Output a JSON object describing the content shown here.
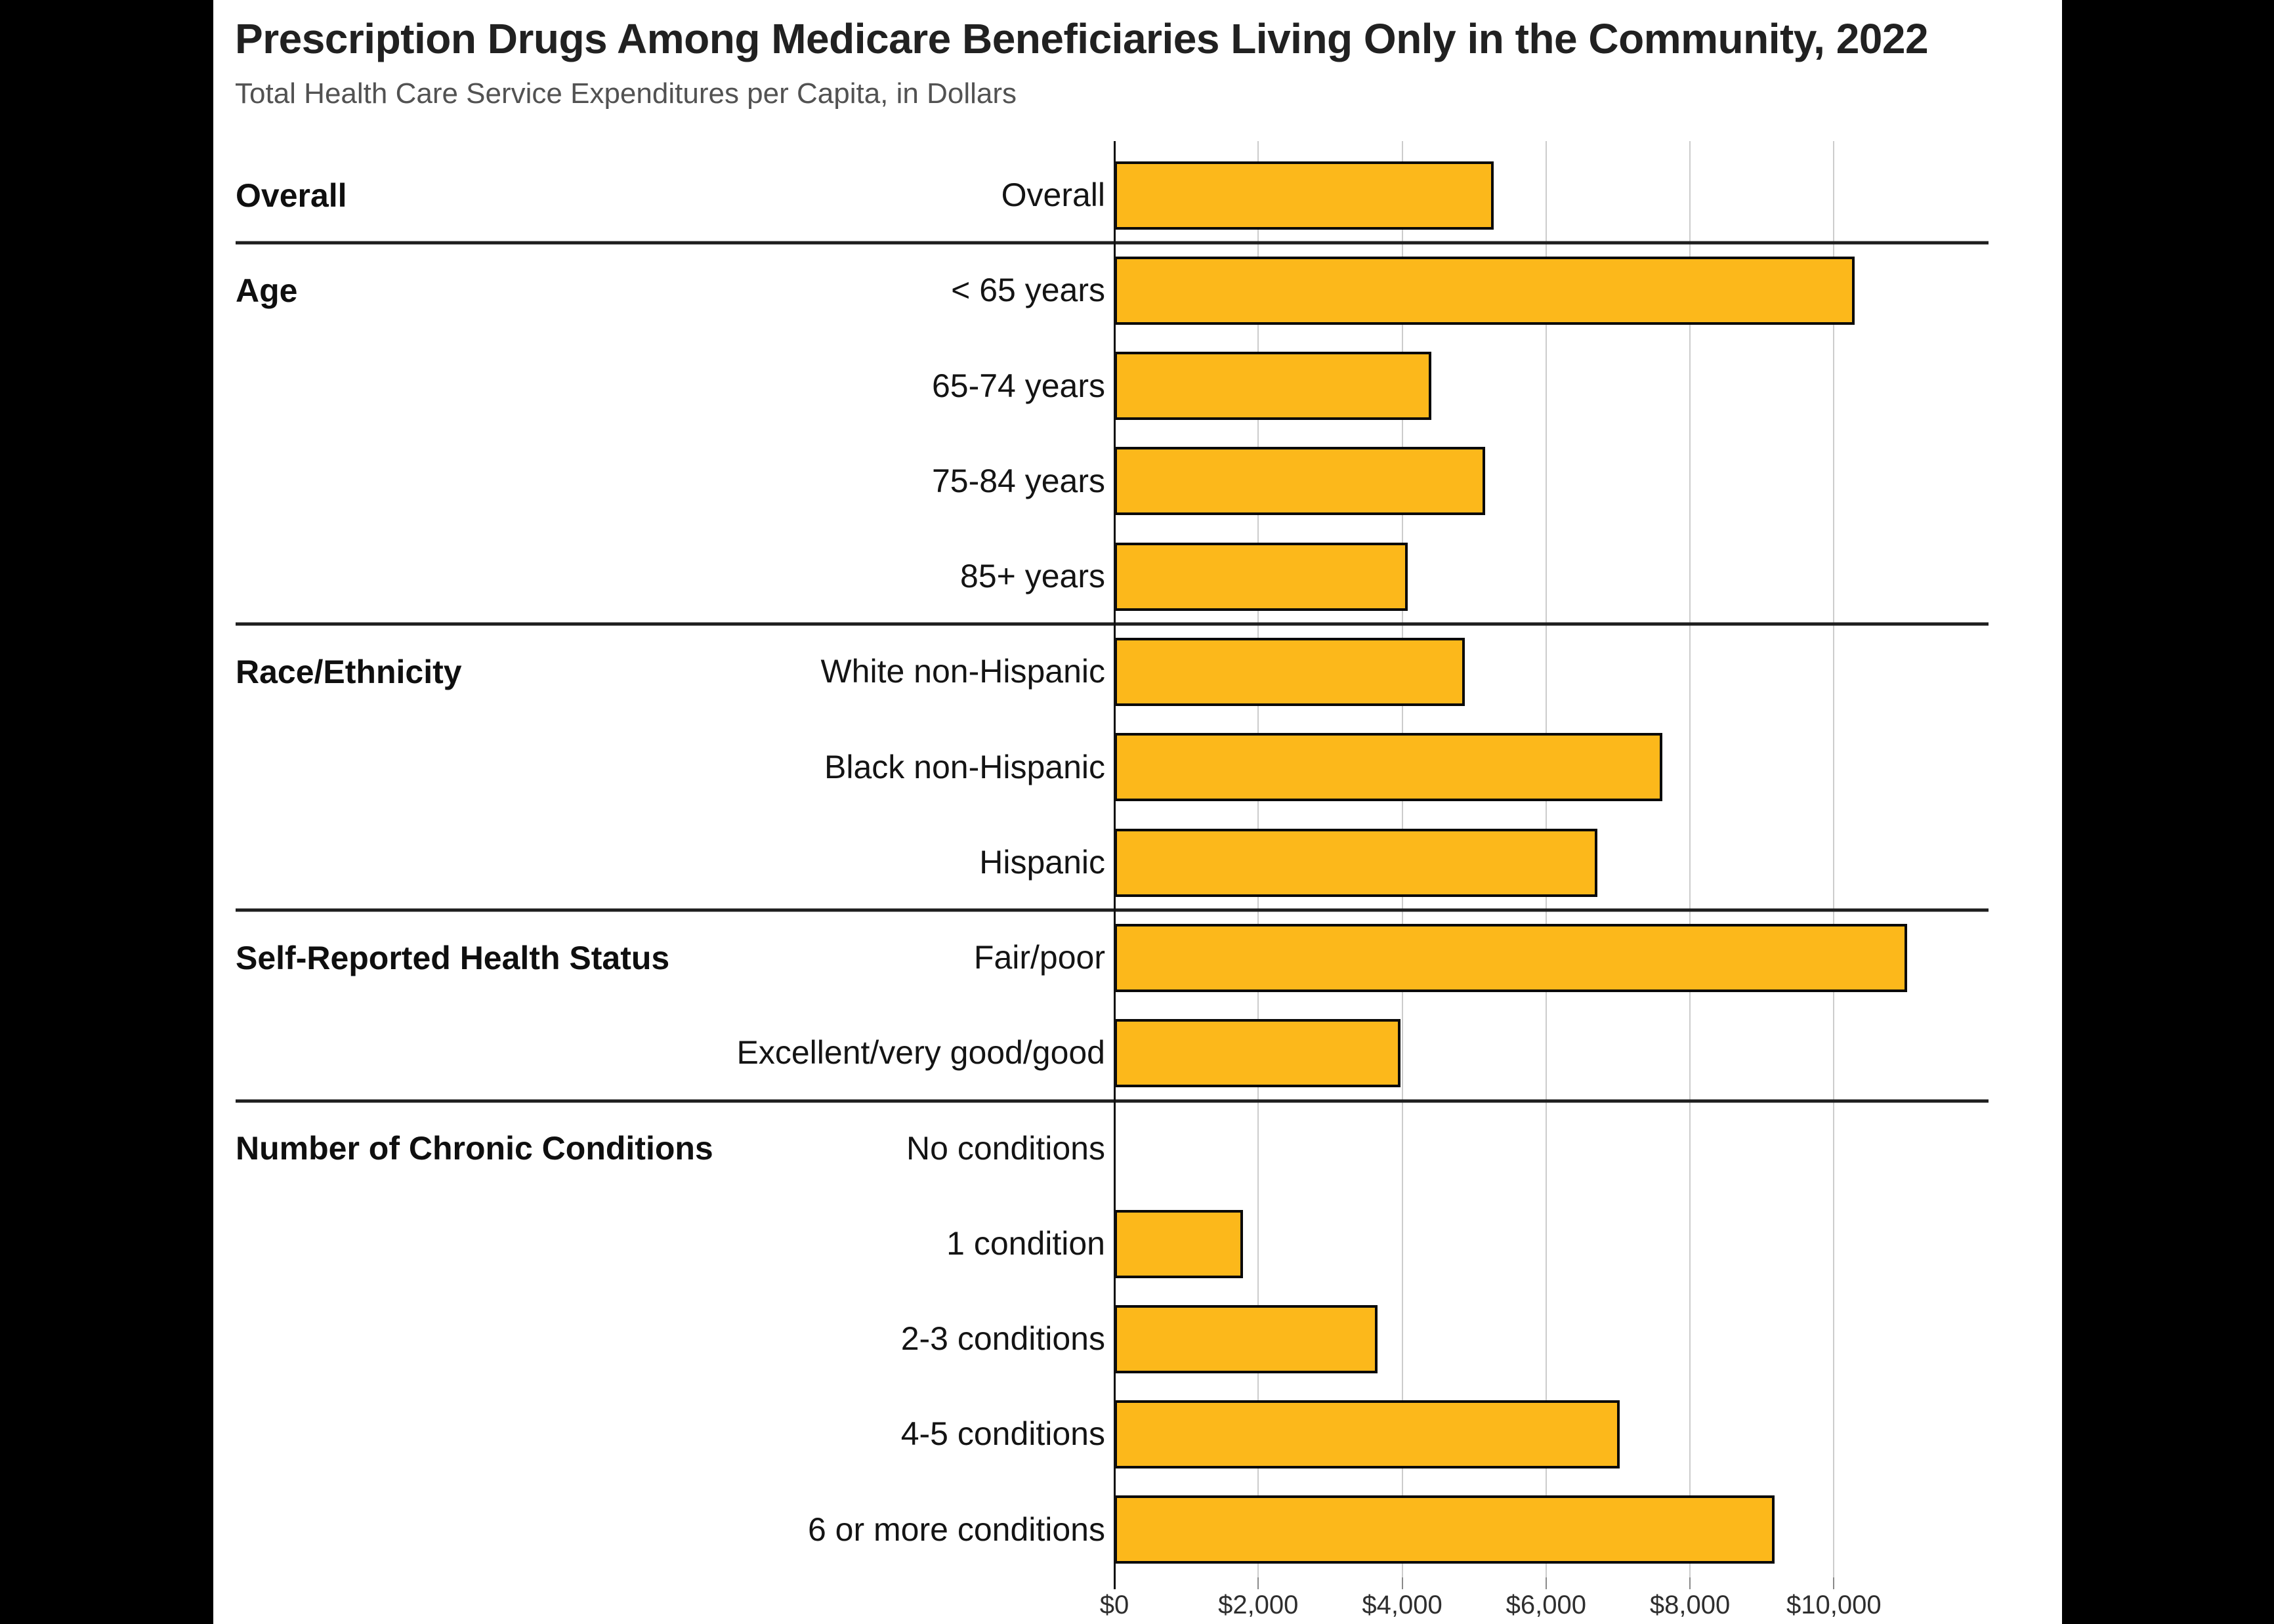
{
  "page": {
    "background_color": "#000000",
    "card_background_color": "#ffffff"
  },
  "header": {
    "title": "Prescription Drugs Among Medicare Beneficiaries Living Only in the Community, 2022",
    "subtitle": "Total Health Care Service Expenditures per Capita, in Dollars"
  },
  "chart_data": {
    "type": "bar",
    "orientation": "horizontal",
    "title": "Prescription Drugs Among Medicare Beneficiaries Living Only in the Community, 2022",
    "subtitle": "Total Health Care Service Expenditures per Capita, in Dollars",
    "xlabel": "",
    "ylabel": "",
    "unit": "dollars per capita",
    "xlim": [
      0,
      12150
    ],
    "grid": "vertical",
    "tick_values": [
      0,
      2000,
      4000,
      6000,
      8000,
      10000
    ],
    "tick_labels": [
      "$0",
      "$2,000",
      "$4,000",
      "$6,000",
      "$8,000",
      "$10,000"
    ],
    "bar_color": "#FCB81B",
    "bar_border_color": "#0A0A0A",
    "gridline_color": "#CCCCCC",
    "divider_color": "#1E1E1E",
    "sections": [
      {
        "label": "Overall",
        "rows": [
          {
            "label": "Overall",
            "value": 5270
          }
        ]
      },
      {
        "label": "Age",
        "rows": [
          {
            "label": "< 65 years",
            "value": 10290
          },
          {
            "label": "65-74 years",
            "value": 4410
          },
          {
            "label": "75-84 years",
            "value": 5150
          },
          {
            "label": "85+ years",
            "value": 4080
          }
        ]
      },
      {
        "label": "Race/Ethnicity",
        "rows": [
          {
            "label": "White non-Hispanic",
            "value": 4870
          },
          {
            "label": "Black non-Hispanic",
            "value": 7620
          },
          {
            "label": "Hispanic",
            "value": 6710
          }
        ]
      },
      {
        "label": "Self-Reported Health Status",
        "rows": [
          {
            "label": "Fair/poor",
            "value": 11020
          },
          {
            "label": "Excellent/very good/good",
            "value": 3980
          }
        ]
      },
      {
        "label": "Number of Chronic Conditions",
        "rows": [
          {
            "label": "No conditions",
            "value": 0
          },
          {
            "label": "1 condition",
            "value": 1790
          },
          {
            "label": "2-3 conditions",
            "value": 3660
          },
          {
            "label": "4-5 conditions",
            "value": 7020
          },
          {
            "label": "6 or more conditions",
            "value": 9180
          }
        ]
      }
    ]
  }
}
